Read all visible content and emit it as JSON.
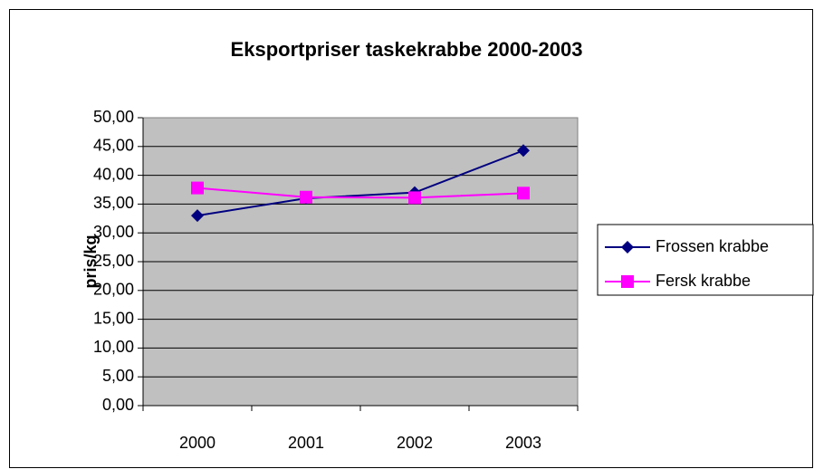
{
  "chart_data": {
    "type": "line",
    "title": "Eksportpriser taskekrabbe 2000-2003",
    "y_label": "pris/kg",
    "categories": [
      "2000",
      "2001",
      "2002",
      "2003"
    ],
    "series": [
      {
        "name": "Frossen krabbe",
        "color": "#000080",
        "marker": "diamond",
        "values": [
          33.0,
          36.0,
          37.0,
          44.3
        ]
      },
      {
        "name": "Fersk krabbe",
        "color": "#ff00ff",
        "marker": "square",
        "values": [
          37.8,
          36.2,
          36.1,
          36.9
        ]
      }
    ],
    "ylim": [
      0,
      50
    ],
    "yticks": [
      {
        "value": 0,
        "label": "0,00"
      },
      {
        "value": 5,
        "label": "5,00"
      },
      {
        "value": 10,
        "label": "10,00"
      },
      {
        "value": 15,
        "label": "15,00"
      },
      {
        "value": 20,
        "label": "20,00"
      },
      {
        "value": 25,
        "label": "25,00"
      },
      {
        "value": 30,
        "label": "30,00"
      },
      {
        "value": 35,
        "label": "35,00"
      },
      {
        "value": 40,
        "label": "40,00"
      },
      {
        "value": 45,
        "label": "45,00"
      },
      {
        "value": 50,
        "label": "50,00"
      }
    ],
    "grid": true,
    "legend": "right"
  }
}
